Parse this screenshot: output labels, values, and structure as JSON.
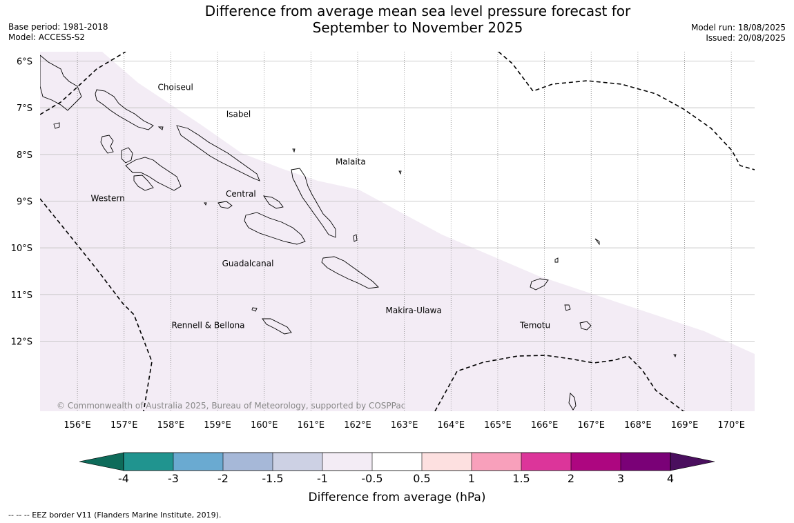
{
  "title_line1": "Difference from average mean sea level pressure forecast for",
  "title_line2": "September to November 2025",
  "base_period": "Base period: 1981-2018",
  "model": "Model: ACCESS-S2",
  "model_run": "Model run: 18/08/2025",
  "issued": "Issued: 20/08/2025",
  "copyright": "© Commonwealth of Australia 2025, Bureau of Meteorology, supported by COSPPac",
  "footer": "--  --  -- EEZ border V11 (Flanders Marine Institute, 2019).",
  "colorbar_label": "Difference from average (hPa)",
  "map": {
    "lon_range": [
      155.2,
      170.5
    ],
    "lat_range": [
      -13.5,
      -5.8
    ],
    "lon_ticks": [
      "156°E",
      "157°E",
      "158°E",
      "159°E",
      "160°E",
      "161°E",
      "162°E",
      "163°E",
      "164°E",
      "165°E",
      "166°E",
      "167°E",
      "168°E",
      "169°E",
      "170°E"
    ],
    "lat_ticks": [
      "6°S",
      "7°S",
      "8°S",
      "9°S",
      "10°S",
      "11°S",
      "12°S"
    ],
    "regions": [
      {
        "name": "Choiseul",
        "lon": 158.1,
        "lat": -6.62
      },
      {
        "name": "Isabel",
        "lon": 159.45,
        "lat": -7.2
      },
      {
        "name": "Malaita",
        "lon": 161.85,
        "lat": -8.22
      },
      {
        "name": "Western",
        "lon": 156.65,
        "lat": -9.0
      },
      {
        "name": "Central",
        "lon": 159.5,
        "lat": -8.9
      },
      {
        "name": "Guadalcanal",
        "lon": 159.65,
        "lat": -10.4
      },
      {
        "name": "Makira-Ulawa",
        "lon": 163.2,
        "lat": -11.4
      },
      {
        "name": "Rennell & Bellona",
        "lon": 158.8,
        "lat": -11.72
      },
      {
        "name": "Temotu",
        "lon": 165.8,
        "lat": -11.72
      }
    ],
    "anomaly_zone": {
      "category": "-1 to -0.5",
      "color": "#f3ecf5"
    }
  },
  "colorbar": {
    "under_color": "#0e6b5a",
    "over_color": "#4a0f5e",
    "bins": [
      {
        "color": "#20948f"
      },
      {
        "color": "#6aaad1"
      },
      {
        "color": "#a6b8d8"
      },
      {
        "color": "#cdd1e4"
      },
      {
        "color": "#f3ecf5"
      },
      {
        "color": "#ffffff"
      },
      {
        "color": "#fde0e0"
      },
      {
        "color": "#f8a0bb"
      },
      {
        "color": "#dc359a"
      },
      {
        "color": "#ad0680"
      },
      {
        "color": "#7a0177"
      }
    ],
    "ticks": [
      "-4",
      "-3",
      "-2",
      "-1.5",
      "-1",
      "-0.5",
      "0.5",
      "1",
      "1.5",
      "2",
      "3",
      "4"
    ]
  }
}
